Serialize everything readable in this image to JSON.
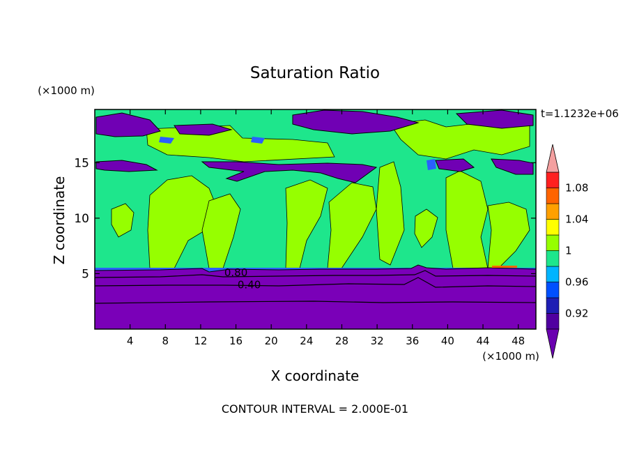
{
  "chart_data": {
    "type": "heatmap",
    "title": "Saturation Ratio",
    "xlabel": "X coordinate",
    "ylabel": "Z coordinate",
    "x_unit": "(×1000 m)",
    "y_unit": "(×1000 m)",
    "time_label": "t=1.1232e+06",
    "footer": "CONTOUR INTERVAL = 2.000E-01",
    "xlim": [
      0,
      50
    ],
    "ylim": [
      0,
      19.8
    ],
    "x_ticks": [
      4,
      8,
      12,
      16,
      20,
      24,
      28,
      32,
      36,
      40,
      44,
      48
    ],
    "y_ticks": [
      5,
      10,
      15
    ],
    "contour_labels": [
      {
        "text": "0.80",
        "x": 16,
        "z": 5.1
      },
      {
        "text": "0.40",
        "x": 17.5,
        "z": 4.0
      }
    ],
    "colorbar": {
      "labels": [
        "1.08",
        "1.04",
        "1",
        "0.96",
        "0.92"
      ],
      "label_values": [
        1.08,
        1.04,
        1.0,
        0.96,
        0.92
      ],
      "levels": [
        0.9,
        0.92,
        0.94,
        0.96,
        0.98,
        1.0,
        1.02,
        1.04,
        1.06,
        1.08,
        1.1
      ],
      "colors": [
        "#5000a0",
        "#1e1eb4",
        "#0050ff",
        "#00b4ff",
        "#1ee68c",
        "#96ff00",
        "#ffff00",
        "#ffa000",
        "#ff6400",
        "#ff2020"
      ],
      "under_color": "#6a00b0",
      "over_color": "#f4a0a0"
    },
    "regions": {
      "lower_layer": {
        "range_z": [
          0,
          5.4
        ],
        "color": "#7a00b8"
      },
      "main_field": {
        "color": "#1ee68c"
      },
      "green_patches": {
        "color": "#96ff00"
      },
      "purple_bands": {
        "color": "#7000b4"
      },
      "blue_fringe": {
        "color": "#2a60ff"
      }
    }
  }
}
